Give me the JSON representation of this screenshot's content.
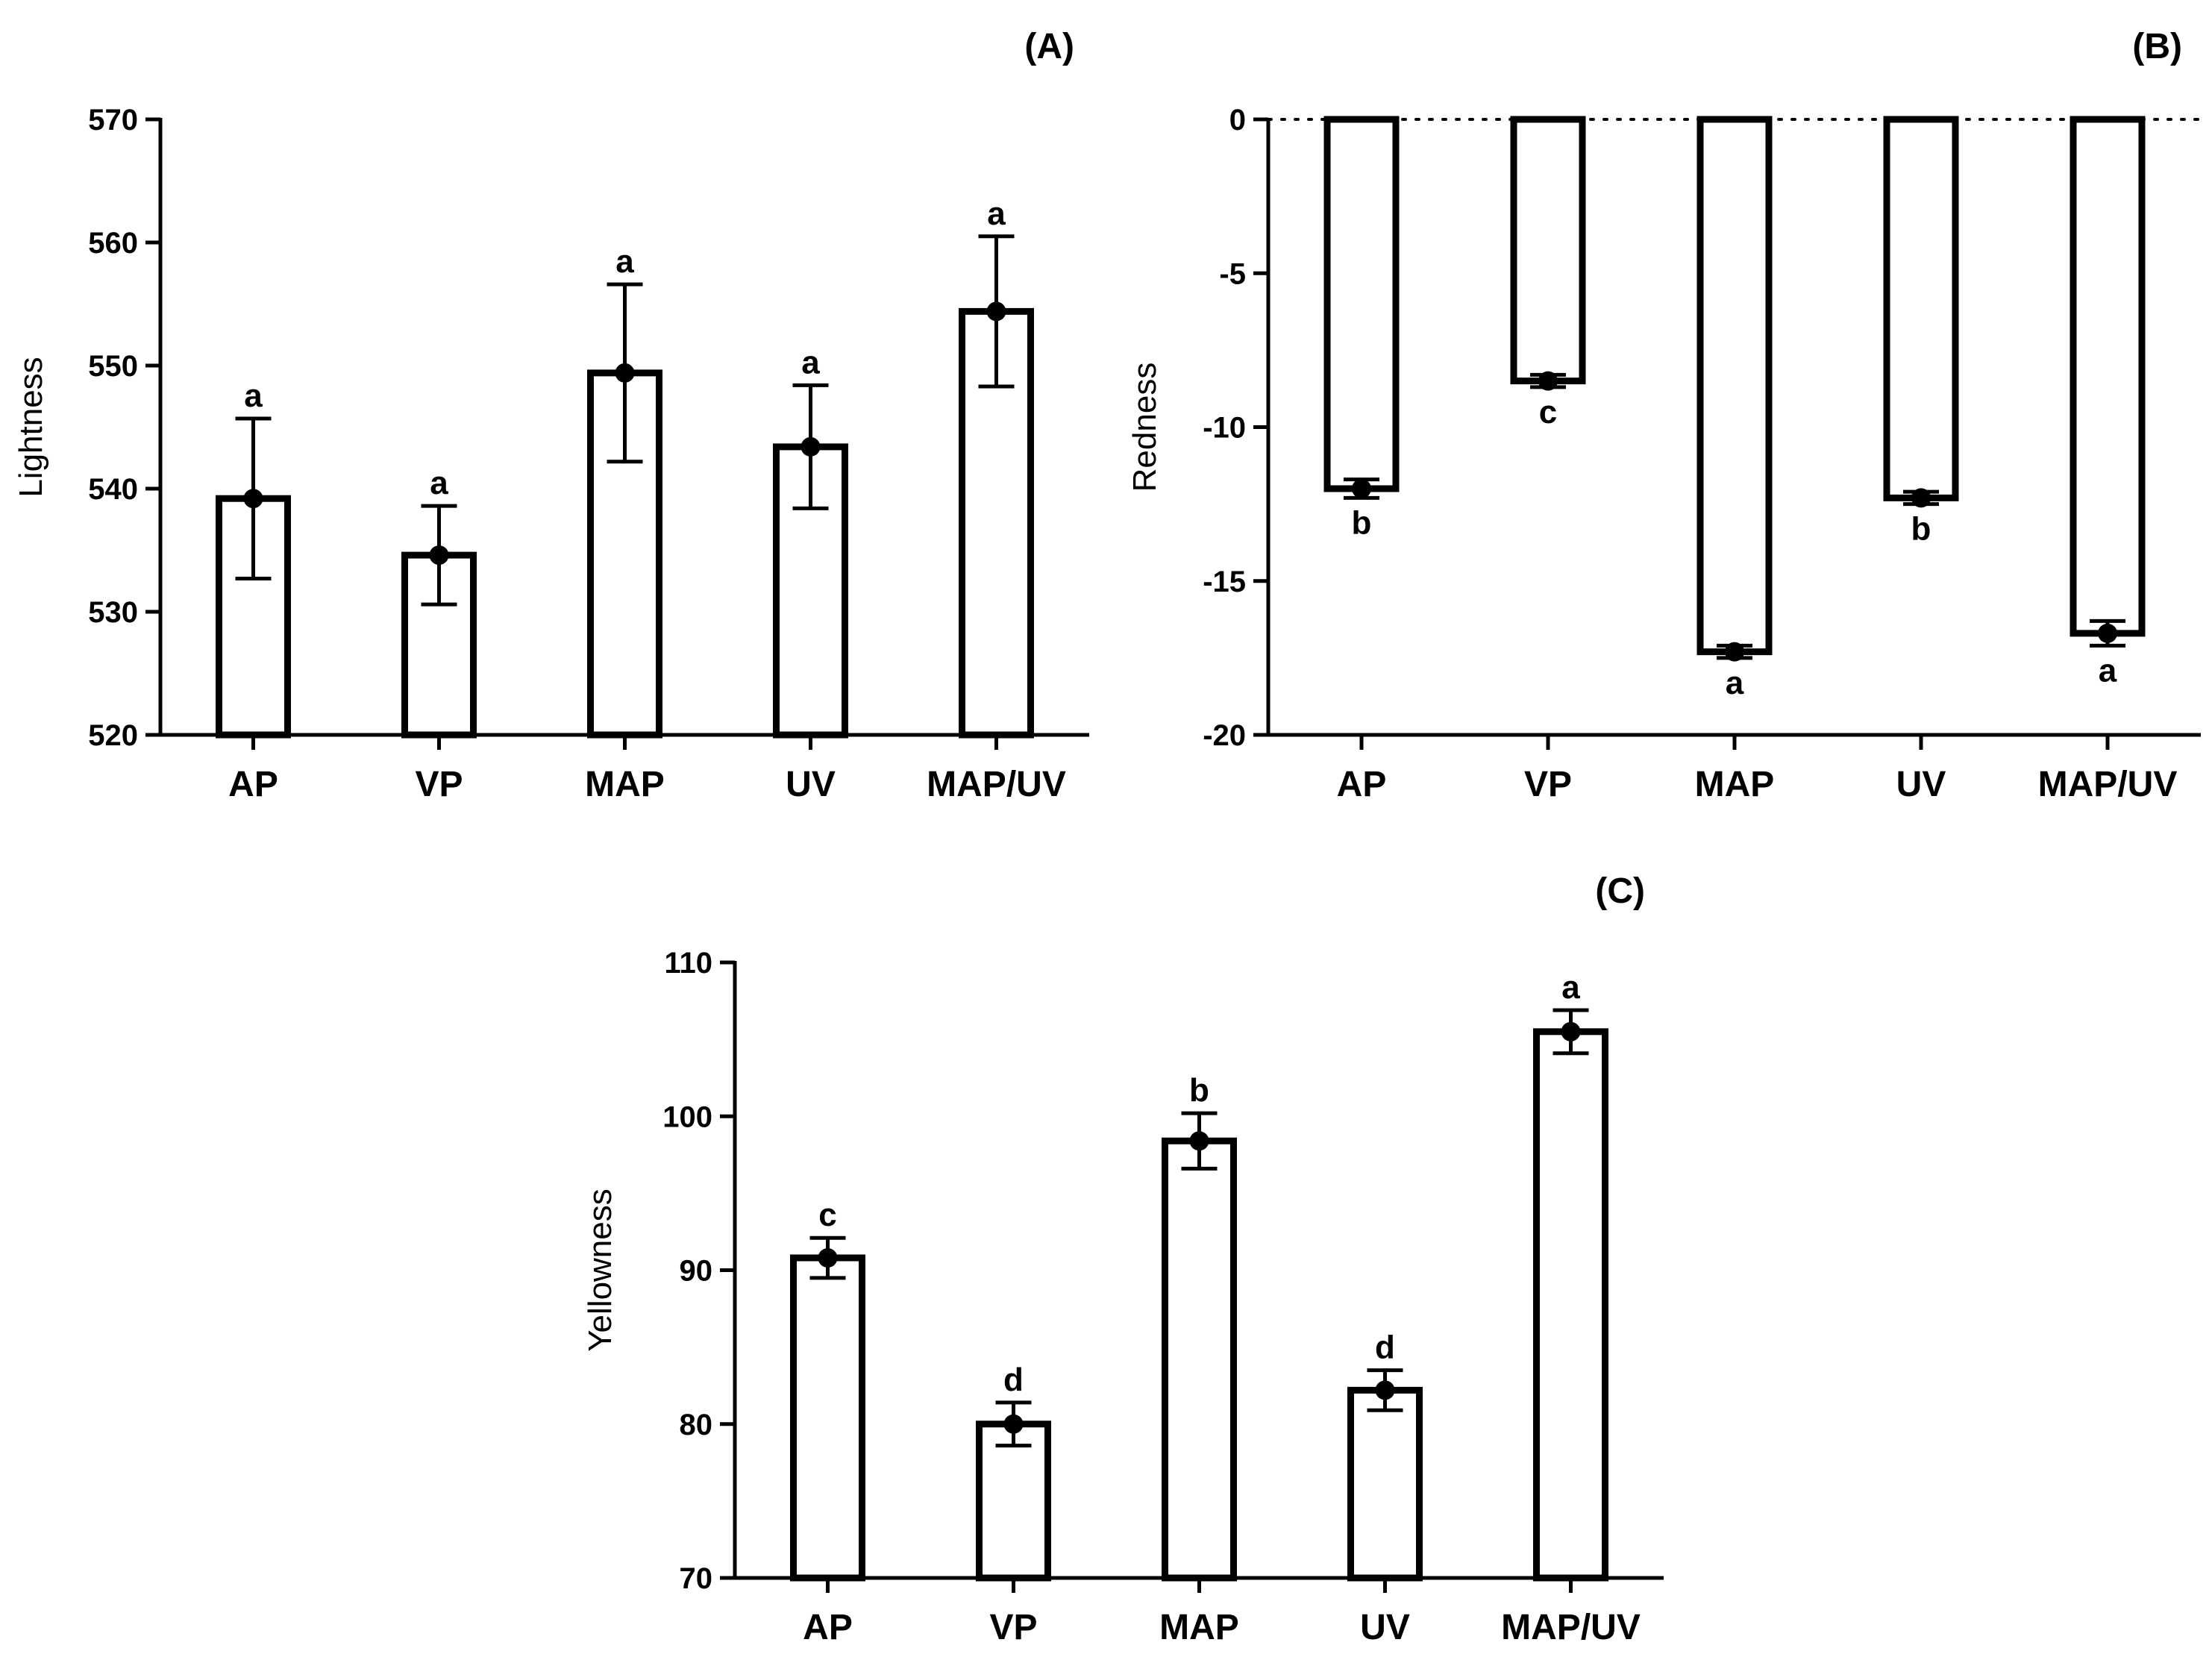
{
  "chart_data": [
    {
      "panel": "(A)",
      "type": "bar",
      "ylabel": "Lightness",
      "ylim": [
        520,
        570
      ],
      "ticks": [
        520,
        530,
        540,
        550,
        560,
        570
      ],
      "categories": [
        "AP",
        "VP",
        "MAP",
        "UV",
        "MAP/UV"
      ],
      "values": [
        539.2,
        534.6,
        549.4,
        543.4,
        554.4
      ],
      "errors": [
        6.5,
        4.0,
        7.2,
        5.0,
        6.1
      ],
      "letters": [
        "a",
        "a",
        "a",
        "a",
        "a"
      ],
      "zero_line": false
    },
    {
      "panel": "(B)",
      "type": "bar",
      "ylabel": "Redness",
      "ylim": [
        -20,
        0
      ],
      "ticks": [
        -20,
        -15,
        -10,
        -5,
        0
      ],
      "categories": [
        "AP",
        "VP",
        "MAP",
        "UV",
        "MAP/UV"
      ],
      "values": [
        -12.0,
        -8.5,
        -17.3,
        -12.3,
        -16.7
      ],
      "errors": [
        0.3,
        0.2,
        0.2,
        0.2,
        0.4
      ],
      "letters": [
        "b",
        "c",
        "a",
        "b",
        "a"
      ],
      "zero_line": true
    },
    {
      "panel": "(C)",
      "type": "bar",
      "ylabel": "Yellowness",
      "ylim": [
        70,
        110
      ],
      "ticks": [
        70,
        80,
        90,
        100,
        110
      ],
      "categories": [
        "AP",
        "VP",
        "MAP",
        "UV",
        "MAP/UV"
      ],
      "values": [
        90.8,
        80.0,
        98.4,
        82.2,
        105.5
      ],
      "errors": [
        1.3,
        1.4,
        1.8,
        1.3,
        1.4
      ],
      "letters": [
        "c",
        "d",
        "b",
        "d",
        "a"
      ],
      "zero_line": false
    }
  ]
}
